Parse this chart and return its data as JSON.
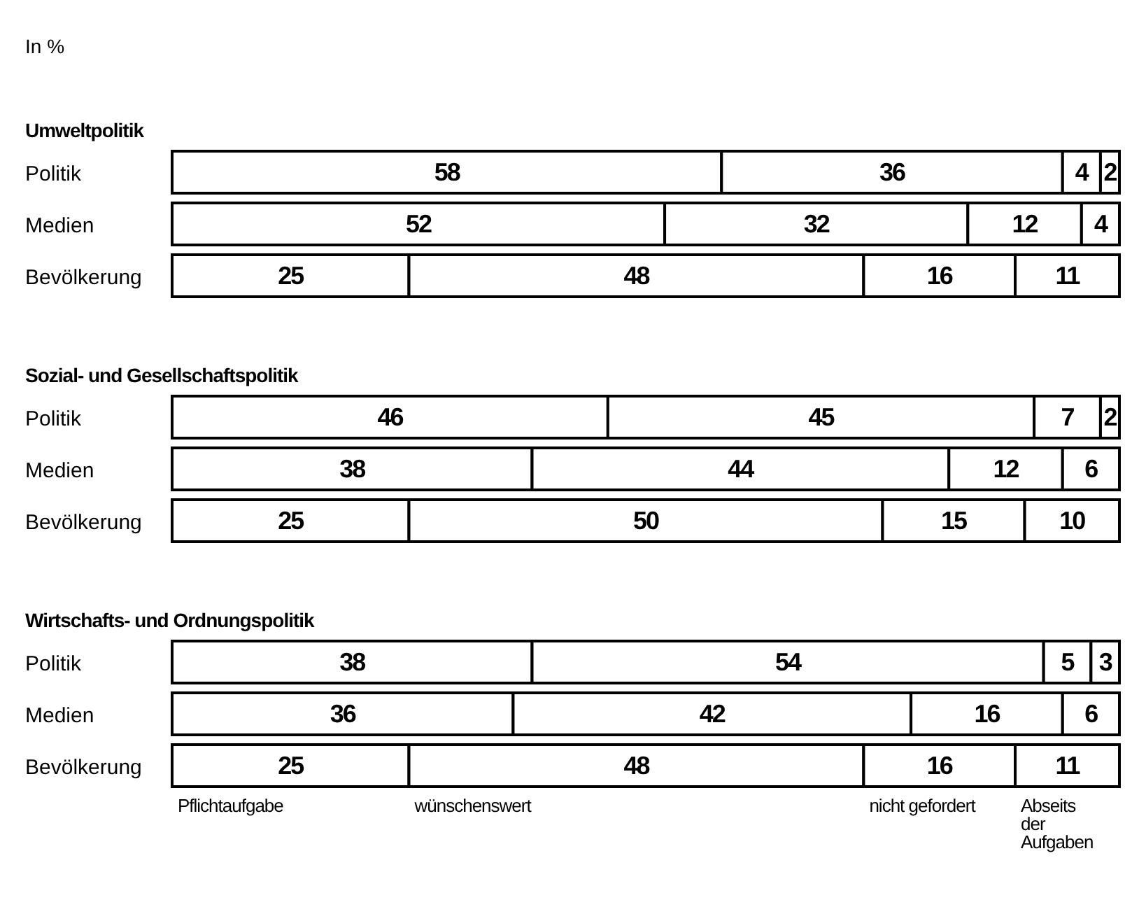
{
  "chart_data": [
    {
      "type": "bar",
      "orientation": "horizontal",
      "stacked": true,
      "title": "Umweltpolitik",
      "annotations": [
        "In %"
      ],
      "categories": [
        "Politik",
        "Medien",
        "Bevölkerung"
      ],
      "xlim": [
        0,
        100
      ],
      "tick_labels": "y",
      "data_labels": true,
      "legend": false,
      "series": [
        {
          "color": "#ffffff",
          "values": [
            58,
            52,
            25
          ]
        },
        {
          "color": "#ffffff",
          "values": [
            36,
            32,
            48
          ]
        },
        {
          "color": "#ffffff",
          "values": [
            4,
            12,
            16
          ]
        },
        {
          "color": "#ffffff",
          "values": [
            2,
            4,
            11
          ]
        }
      ]
    },
    {
      "type": "bar",
      "orientation": "horizontal",
      "stacked": true,
      "title": "Sozial- und Gesellschaftspolitik",
      "categories": [
        "Politik",
        "Medien",
        "Bevölkerung"
      ],
      "xlim": [
        0,
        100
      ],
      "tick_labels": "y",
      "data_labels": true,
      "legend": false,
      "series": [
        {
          "color": "#ffffff",
          "values": [
            46,
            38,
            25
          ]
        },
        {
          "color": "#ffffff",
          "values": [
            45,
            44,
            50
          ]
        },
        {
          "color": "#ffffff",
          "values": [
            7,
            12,
            15
          ]
        },
        {
          "color": "#ffffff",
          "values": [
            2,
            6,
            10
          ]
        }
      ]
    },
    {
      "type": "bar",
      "orientation": "horizontal",
      "stacked": true,
      "title": "Wirtschafts- und Ordnungspolitik",
      "categories": [
        "Politik",
        "Medien",
        "Bevölkerung"
      ],
      "xlim": [
        0,
        100
      ],
      "tick_labels": "y",
      "data_labels": true,
      "legend": "bottom",
      "series": [
        {
          "name": "Pflichtaufgabe",
          "color": "#ffffff",
          "values": [
            38,
            36,
            25
          ]
        },
        {
          "name": "wünschenswert",
          "color": "#ffffff",
          "values": [
            54,
            42,
            48
          ]
        },
        {
          "name": "nicht gefordert",
          "color": "#ffffff",
          "values": [
            5,
            16,
            16
          ]
        },
        {
          "name": "Abseits der Aufgaben",
          "color": "#ffffff",
          "values": [
            3,
            6,
            11
          ]
        }
      ]
    }
  ]
}
